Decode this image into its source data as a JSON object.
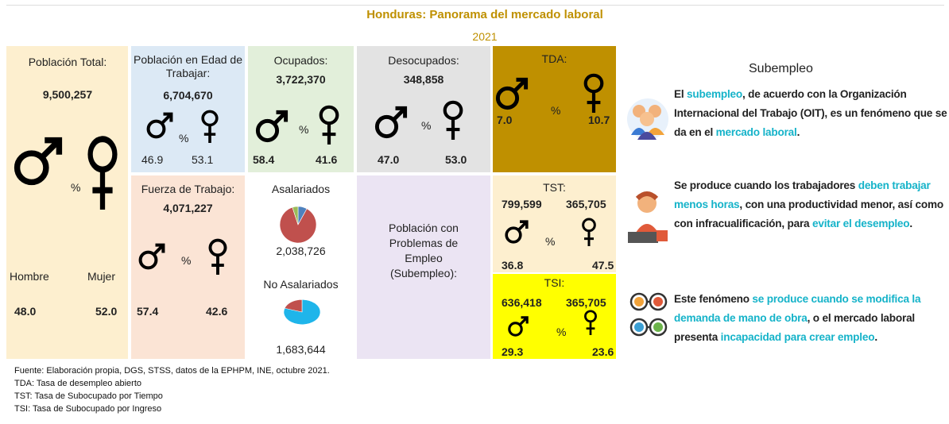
{
  "title": "Honduras: Panorama del mercado laboral",
  "year": "2021",
  "poblacion": {
    "label": "Población Total:",
    "value": "9,500,257",
    "pct": "%",
    "hombre": "Hombre",
    "mujer": "Mujer",
    "male": "48.0",
    "female": "52.0"
  },
  "pet": {
    "label": "Población en Edad de Trabajar:",
    "value": "6,704,670",
    "pct": "%",
    "male": "46.9",
    "female": "53.1"
  },
  "ocupados": {
    "label": "Ocupados:",
    "value": "3,722,370",
    "pct": "%",
    "male": "58.4",
    "female": "41.6"
  },
  "desocupados": {
    "label": "Desocupados:",
    "value": "348,858",
    "pct": "%",
    "male": "47.0",
    "female": "53.0"
  },
  "tda": {
    "label": "TDA:",
    "pct": "%",
    "male": "7.0",
    "female": "10.7"
  },
  "fuerza": {
    "label": "Fuerza de Trabajo:",
    "value": "4,071,227",
    "pct": "%",
    "male": "57.4",
    "female": "42.6"
  },
  "asalariados": {
    "label": "Asalariados",
    "value": "2,038,726",
    "pie": {
      "values": [
        8,
        87,
        5
      ],
      "colors": [
        "#4f81bd",
        "#c0504d",
        "#9bbb59"
      ]
    }
  },
  "no_asalariados": {
    "label": "No Asalariados",
    "value": "1,683,644",
    "pie": {
      "values": [
        80,
        20
      ],
      "colors": [
        "#1fb5ea",
        "#c0504d"
      ]
    }
  },
  "problemas": {
    "label": "Población con Problemas de Empleo (Subempleo):"
  },
  "tst": {
    "label": "TST:",
    "male_count": "799,599",
    "female_count": "365,705",
    "pct": "%",
    "male": "36.8",
    "female": "47.5"
  },
  "tsi": {
    "label": "TSI:",
    "male_count": "636,418",
    "female_count": "365,705",
    "pct": "%",
    "male": "29.3",
    "female": "23.6"
  },
  "subempleo": {
    "title": "Subempleo",
    "paragraphs": [
      [
        "El ",
        "subempleo",
        ", de acuerdo con la Organización Internacional del Trabajo (OIT), es un fenómeno que se da en el ",
        "mercado laboral",
        "."
      ],
      [
        "Se produce cuando los trabajadores ",
        "deben trabajar menos horas",
        ", con una productividad menor, así como con infracualificación, para ",
        "evitar el desempleo",
        "."
      ],
      [
        "Este fenómeno ",
        "se produce cuando se modifica la demanda de mano de obra",
        ", o el mercado laboral presenta ",
        "incapacidad para crear empleo",
        "."
      ]
    ]
  },
  "footnotes": [
    "Fuente: Elaboración propia, DGS, STSS, datos de la EPHPM,   INE,  octubre 2021.",
    "TDA: Tasa de desempleo abierto",
    "TST: Tasa de Subocupado por Tiempo",
    "TSI:  Tasa de Subocupado por Ingreso"
  ]
}
